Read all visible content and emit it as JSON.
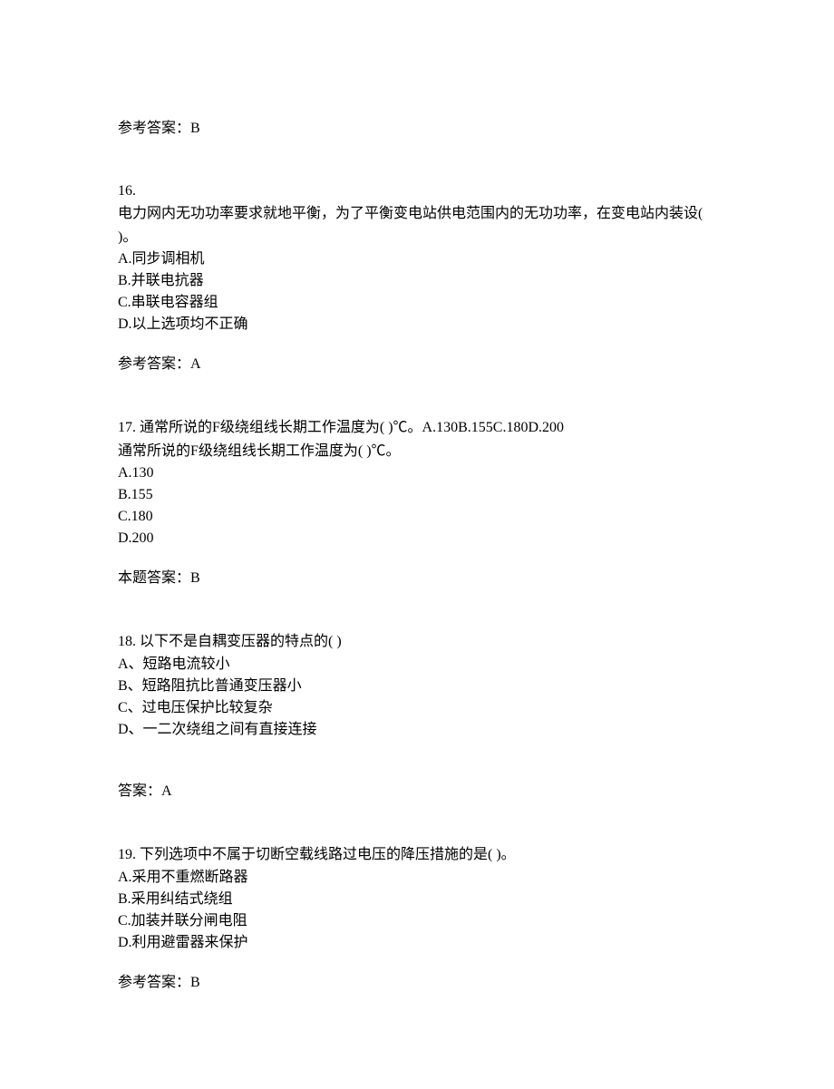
{
  "initial_answer": {
    "label": "参考答案：B"
  },
  "q16": {
    "number": "16.",
    "stem": "电力网内无功功率要求就地平衡，为了平衡变电站供电范围内的无功功率，在变电站内装设(  )。",
    "optA": "A.同步调相机",
    "optB": "B.并联电抗器",
    "optC": "C.串联电容器组",
    "optD": "D.以上选项均不正确",
    "answer_label": "参考答案：A"
  },
  "q17": {
    "stem_line1": "17. 通常所说的F级绕组线长期工作温度为(  )℃。A.130B.155C.180D.200",
    "stem_line2": "通常所说的F级绕组线长期工作温度为(  )℃。",
    "optA": "A.130",
    "optB": "B.155",
    "optC": "C.180",
    "optD": "D.200",
    "answer_label": "本题答案：B"
  },
  "q18": {
    "stem": "18. 以下不是自耦变压器的特点的( )",
    "optA": "A、短路电流较小",
    "optB": "B、短路阻抗比普通变压器小",
    "optC": "C、过电压保护比较复杂",
    "optD": "D、一二次绕组之间有直接连接",
    "answer_label": "答案：A"
  },
  "q19": {
    "stem": "19. 下列选项中不属于切断空载线路过电压的降压措施的是(  )。",
    "optA": "A.采用不重燃断路器",
    "optB": "B.采用纠结式绕组",
    "optC": "C.加装并联分闸电阻",
    "optD": "D.利用避雷器来保护",
    "answer_label": "参考答案：B"
  }
}
